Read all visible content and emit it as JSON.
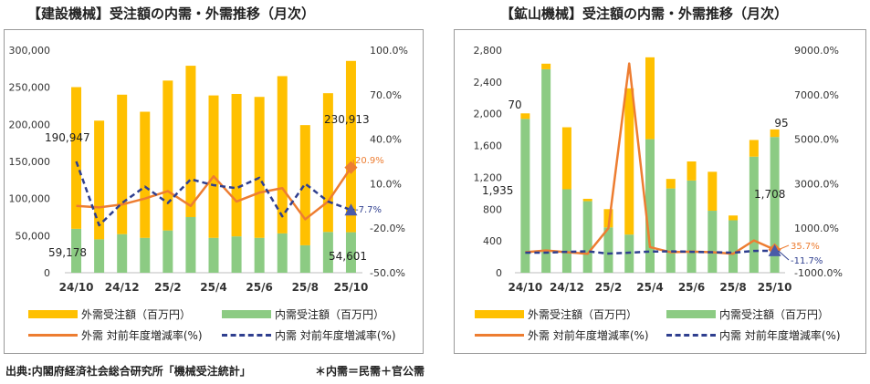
{
  "chart_data": [
    {
      "type": "bar",
      "title": "【建設機械】受注額の内需・外需推移（月次）",
      "categories": [
        "24/10",
        "24/11",
        "24/12",
        "25/1",
        "25/2",
        "25/3",
        "25/4",
        "25/5",
        "25/6",
        "25/7",
        "25/8",
        "25/9",
        "25/10"
      ],
      "x_tick_labels": [
        "24/10",
        "24/12",
        "25/2",
        "25/4",
        "25/6",
        "25/8",
        "25/10"
      ],
      "series": [
        {
          "name": "内需受注額（百万円）",
          "role": "bar-bottom",
          "color": "#8CCB83",
          "values": [
            59178,
            45000,
            52000,
            47000,
            57000,
            75000,
            47000,
            49000,
            47000,
            53000,
            37000,
            55000,
            54601
          ]
        },
        {
          "name": "外需受注額（百万円）",
          "role": "bar-top",
          "color": "#FFC000",
          "values": [
            191000,
            160000,
            188000,
            170000,
            202000,
            204000,
            192000,
            192000,
            190000,
            212000,
            162000,
            187000,
            230913
          ]
        },
        {
          "name": "外需 対前年度増減率(%)",
          "role": "line",
          "axis": "right",
          "color": "#ED7D31",
          "style": "solid",
          "values": [
            -5,
            -6,
            -4,
            0,
            5,
            -5,
            15,
            -2,
            4,
            7,
            -14,
            -2,
            20.9
          ]
        },
        {
          "name": "内需 対前年度増減率(%)",
          "role": "line",
          "axis": "right",
          "color": "#2F3F8F",
          "style": "dashed",
          "values": [
            25,
            -18,
            -3,
            8,
            -3,
            13,
            9,
            7,
            14,
            -12,
            10,
            -2,
            -7.7
          ]
        }
      ],
      "ylim_left": [
        0,
        300000
      ],
      "y_ticks_left": [
        "0",
        "50,000",
        "100,000",
        "150,000",
        "200,000",
        "250,000",
        "300,000"
      ],
      "ylim_right": [
        -50,
        100
      ],
      "y_ticks_right": [
        "-50.0%",
        "-20.0%",
        "10.0%",
        "40.0%",
        "70.0%",
        "100.0%"
      ],
      "annotations": {
        "first_outer": "190,947",
        "first_inner": "59,178",
        "last_outer": "230,913",
        "last_inner": "54,601",
        "ext_rate": "20.9%",
        "dom_rate": "-7.7%"
      }
    },
    {
      "type": "bar",
      "title": "【鉱山機械】受注額の内需・外需推移（月次）",
      "categories": [
        "24/10",
        "24/11",
        "24/12",
        "25/1",
        "25/2",
        "25/3",
        "25/4",
        "25/5",
        "25/6",
        "25/7",
        "25/8",
        "25/9",
        "25/10"
      ],
      "x_tick_labels": [
        "24/10",
        "24/12",
        "25/2",
        "25/4",
        "25/6",
        "25/8",
        "25/10"
      ],
      "series": [
        {
          "name": "内需受注額（百万円）",
          "role": "bar-bottom",
          "color": "#8CCB83",
          "values": [
            1935,
            2560,
            1050,
            900,
            570,
            480,
            1680,
            1060,
            1160,
            780,
            660,
            1460,
            1708
          ]
        },
        {
          "name": "外需受注額（百万円）",
          "role": "bar-top",
          "color": "#FFC000",
          "values": [
            70,
            70,
            780,
            30,
            230,
            1840,
            1030,
            120,
            240,
            490,
            60,
            210,
            95
          ]
        },
        {
          "name": "外需 対前年度増減率(%)",
          "role": "line",
          "axis": "right",
          "color": "#ED7D31",
          "style": "solid",
          "values": [
            -80,
            0,
            -80,
            -150,
            1000,
            8400,
            150,
            -80,
            -50,
            -80,
            -150,
            450,
            35.7
          ]
        },
        {
          "name": "内需 対前年度増減率(%)",
          "role": "line",
          "axis": "right",
          "color": "#2F3F8F",
          "style": "dashed",
          "values": [
            -100,
            -100,
            -60,
            -40,
            -140,
            -100,
            -50,
            -40,
            -60,
            -80,
            -100,
            -20,
            -11.7
          ]
        }
      ],
      "ylim_left": [
        0,
        2800
      ],
      "y_ticks_left": [
        "0",
        "400",
        "800",
        "1,200",
        "1,600",
        "2,000",
        "2,400",
        "2,800"
      ],
      "ylim_right": [
        -1000,
        9000
      ],
      "y_ticks_right": [
        "-1000.0%",
        "1000.0%",
        "3000.0%",
        "5000.0%",
        "7000.0%",
        "9000.0%"
      ],
      "annotations": {
        "first_outer": "70",
        "first_inner": "1,935",
        "last_outer": "95",
        "last_inner": "1,708",
        "ext_rate": "35.7%",
        "dom_rate": "-11.7%"
      }
    }
  ],
  "legend": {
    "ext_bar": "外需受注額（百万円）",
    "dom_bar": "内需受注額（百万円）",
    "ext_line": "外需 対前年度増減率(%)",
    "dom_line": "内需 対前年度増減率(%)"
  },
  "footer": {
    "source": "出典:内閣府経済社会総合研究所「機械受注統計」",
    "note": "＊内需＝民需＋官公需"
  },
  "colors": {
    "domestic": "#8CCB83",
    "external": "#FFC000",
    "ext_line": "#ED7D31",
    "dom_line": "#2F3F8F"
  }
}
